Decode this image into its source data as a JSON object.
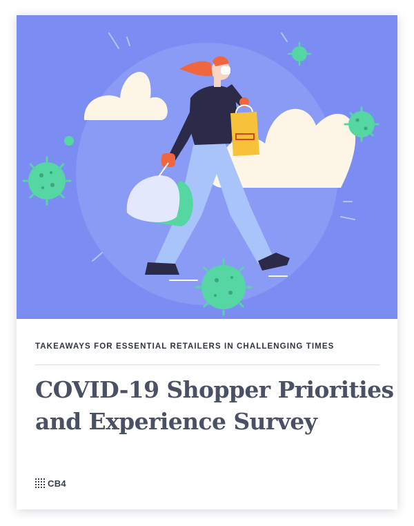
{
  "report": {
    "subtitle": "TAKEAWAYS FOR ESSENTIAL RETAILERS IN CHALLENGING TIMES",
    "title_line1": "COVID-19 Shopper Priorities",
    "title_line2": "and Experience Survey"
  },
  "brand": {
    "logo_text": "CB4"
  },
  "colors": {
    "hero_background": "#7b8cf2",
    "title_text": "#4a5165",
    "virus_green": "#55d6a2",
    "bag_yellow": "#f7c23a",
    "hair_orange": "#f0673f"
  },
  "illustration": {
    "icons": [
      "woman-shopper-illustration",
      "virus-icon",
      "cloud-icon",
      "shopping-bag-icon"
    ]
  }
}
